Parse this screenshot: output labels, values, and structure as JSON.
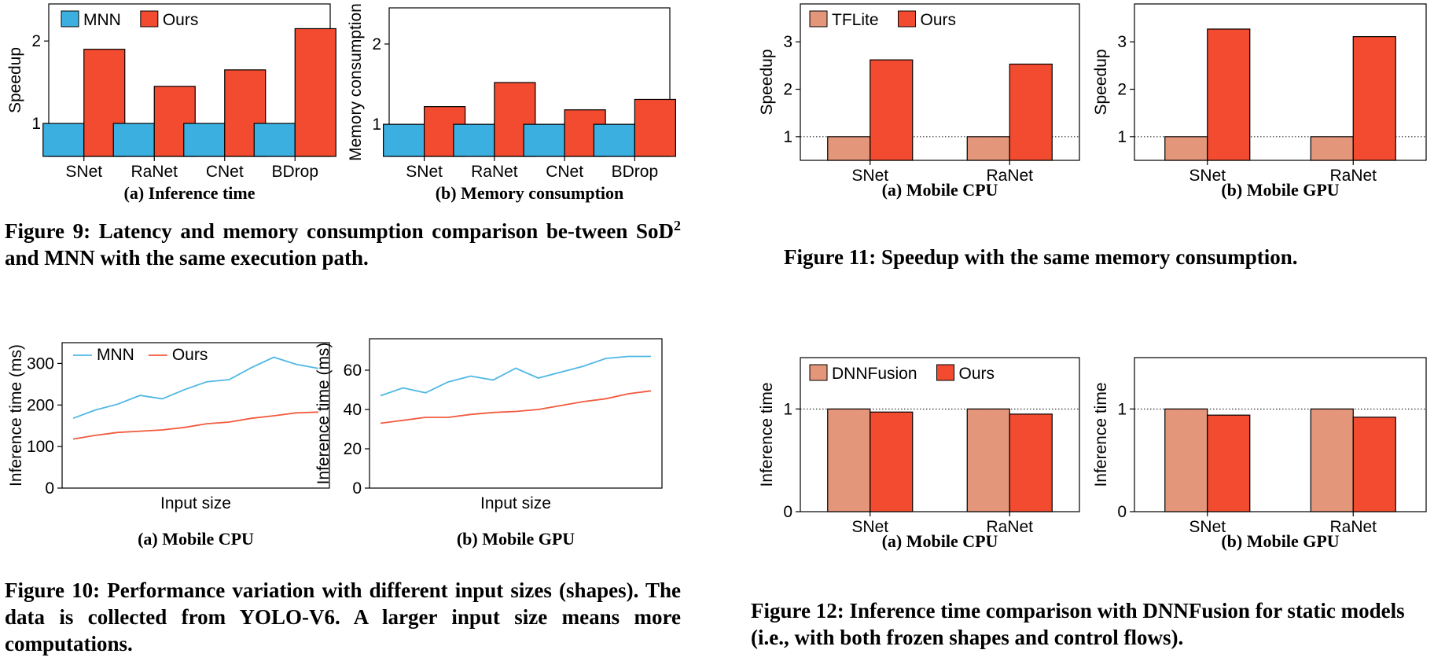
{
  "colors": {
    "mnn": "#3bb0e0",
    "ours": "#f24b30",
    "tflite": "#e3967a",
    "dnnfusion": "#e3967a",
    "line_mnn": "#4fb8e4",
    "line_ours": "#f25a3e"
  },
  "captions": {
    "fig9": {
      "main": "Figure 9: Latency and memory consumption comparison be-tween SoD",
      "sup": "2",
      "rest": " and MNN with the same execution path."
    },
    "fig10": "Figure 10: Performance variation with different input sizes (shapes). The data is collected from YOLO-V6. A larger input size means more computations.",
    "fig11": "Figure 11: Speedup with the same memory consumption.",
    "fig12": "Figure 12: Inference time comparison with DNNFusion for static models (i.e., with both frozen shapes and control flows)."
  },
  "chart_data": [
    {
      "id": "fig9a",
      "type": "bar",
      "subcaption": "(a) Inference time",
      "categories": [
        "SNet",
        "RaNet",
        "CNet",
        "BDrop"
      ],
      "series": [
        {
          "name": "MNN",
          "values": [
            1,
            1,
            1,
            1
          ]
        },
        {
          "name": "Ours",
          "values": [
            1.9,
            1.45,
            1.65,
            2.15
          ]
        }
      ],
      "ylabel": "Speedup",
      "yticks": [
        1,
        2
      ],
      "ylim": [
        0.6,
        2.45
      ],
      "reference_line": 1,
      "legend": "top-left"
    },
    {
      "id": "fig9b",
      "type": "bar",
      "subcaption": "(b) Memory consumption",
      "categories": [
        "SNet",
        "RaNet",
        "CNet",
        "BDrop"
      ],
      "series": [
        {
          "name": "MNN",
          "values": [
            1,
            1,
            1,
            1
          ]
        },
        {
          "name": "Ours",
          "values": [
            1.22,
            1.52,
            1.18,
            1.31
          ]
        }
      ],
      "ylabel": "Memory consumption",
      "yticks": [
        1,
        2
      ],
      "ylim": [
        0.6,
        2.45
      ],
      "reference_line": 1
    },
    {
      "id": "fig11a",
      "type": "bar",
      "subcaption": "(a) Mobile CPU",
      "categories": [
        "SNet",
        "RaNet"
      ],
      "series": [
        {
          "name": "TFLite",
          "values": [
            1,
            1
          ]
        },
        {
          "name": "Ours",
          "values": [
            2.62,
            2.53
          ]
        }
      ],
      "ylabel": "Speedup",
      "yticks": [
        1,
        2,
        3
      ],
      "ylim": [
        0.5,
        3.8
      ],
      "reference_line": 1,
      "legend": "top-left"
    },
    {
      "id": "fig11b",
      "type": "bar",
      "subcaption": "(b) Mobile GPU",
      "categories": [
        "SNet",
        "RaNet"
      ],
      "series": [
        {
          "name": "TFLite",
          "values": [
            1,
            1
          ]
        },
        {
          "name": "Ours",
          "values": [
            3.27,
            3.11
          ]
        }
      ],
      "ylabel": "Speedup",
      "yticks": [
        1,
        2,
        3
      ],
      "ylim": [
        0.5,
        3.8
      ],
      "reference_line": 1
    },
    {
      "id": "fig10a",
      "type": "line",
      "subcaption": "(a) Mobile CPU",
      "x": [
        1,
        2,
        3,
        4,
        5,
        6,
        7,
        8,
        9,
        10,
        11,
        12
      ],
      "series": [
        {
          "name": "MNN",
          "values": [
            168,
            188,
            202,
            223,
            215,
            237,
            256,
            261,
            290,
            315,
            298,
            288
          ]
        },
        {
          "name": "Ours",
          "values": [
            118,
            127,
            134,
            137,
            140,
            146,
            155,
            159,
            168,
            174,
            181,
            183
          ]
        }
      ],
      "xlabel": "Input size",
      "ylabel": "Inference time (ms)",
      "yticks": [
        0,
        100,
        200,
        300
      ],
      "ylim": [
        0,
        350
      ],
      "legend": "top-left"
    },
    {
      "id": "fig10b",
      "type": "line",
      "subcaption": "(b) Mobile GPU",
      "x": [
        1,
        2,
        3,
        4,
        5,
        6,
        7,
        8,
        9,
        10,
        11,
        12,
        13
      ],
      "series": [
        {
          "name": "MNN",
          "values": [
            47,
            51,
            48.5,
            54,
            57,
            55,
            61,
            56,
            59,
            62,
            66,
            67,
            67
          ]
        },
        {
          "name": "Ours",
          "values": [
            33,
            34.5,
            36,
            36,
            37.5,
            38.5,
            39,
            40,
            42,
            44,
            45.5,
            48,
            49.5
          ]
        }
      ],
      "xlabel": "Input size",
      "ylabel": "Inference time (ms)",
      "yticks": [
        0,
        20,
        40,
        60
      ],
      "ylim": [
        0,
        76
      ]
    },
    {
      "id": "fig12a",
      "type": "bar",
      "subcaption": "(a) Mobile CPU",
      "categories": [
        "SNet",
        "RaNet"
      ],
      "series": [
        {
          "name": "DNNFusion",
          "values": [
            1,
            1
          ]
        },
        {
          "name": "Ours",
          "values": [
            0.97,
            0.95
          ]
        }
      ],
      "ylabel": "Inference time",
      "yticks": [
        0,
        1
      ],
      "ylim": [
        0,
        1.5
      ],
      "reference_line": 1,
      "legend": "top-left"
    },
    {
      "id": "fig12b",
      "type": "bar",
      "subcaption": "(b) Mobile GPU",
      "categories": [
        "SNet",
        "RaNet"
      ],
      "series": [
        {
          "name": "DNNFusion",
          "values": [
            1,
            1
          ]
        },
        {
          "name": "Ours",
          "values": [
            0.94,
            0.92
          ]
        }
      ],
      "ylabel": "Inference time",
      "yticks": [
        0,
        1
      ],
      "ylim": [
        0,
        1.5
      ],
      "reference_line": 1
    }
  ]
}
